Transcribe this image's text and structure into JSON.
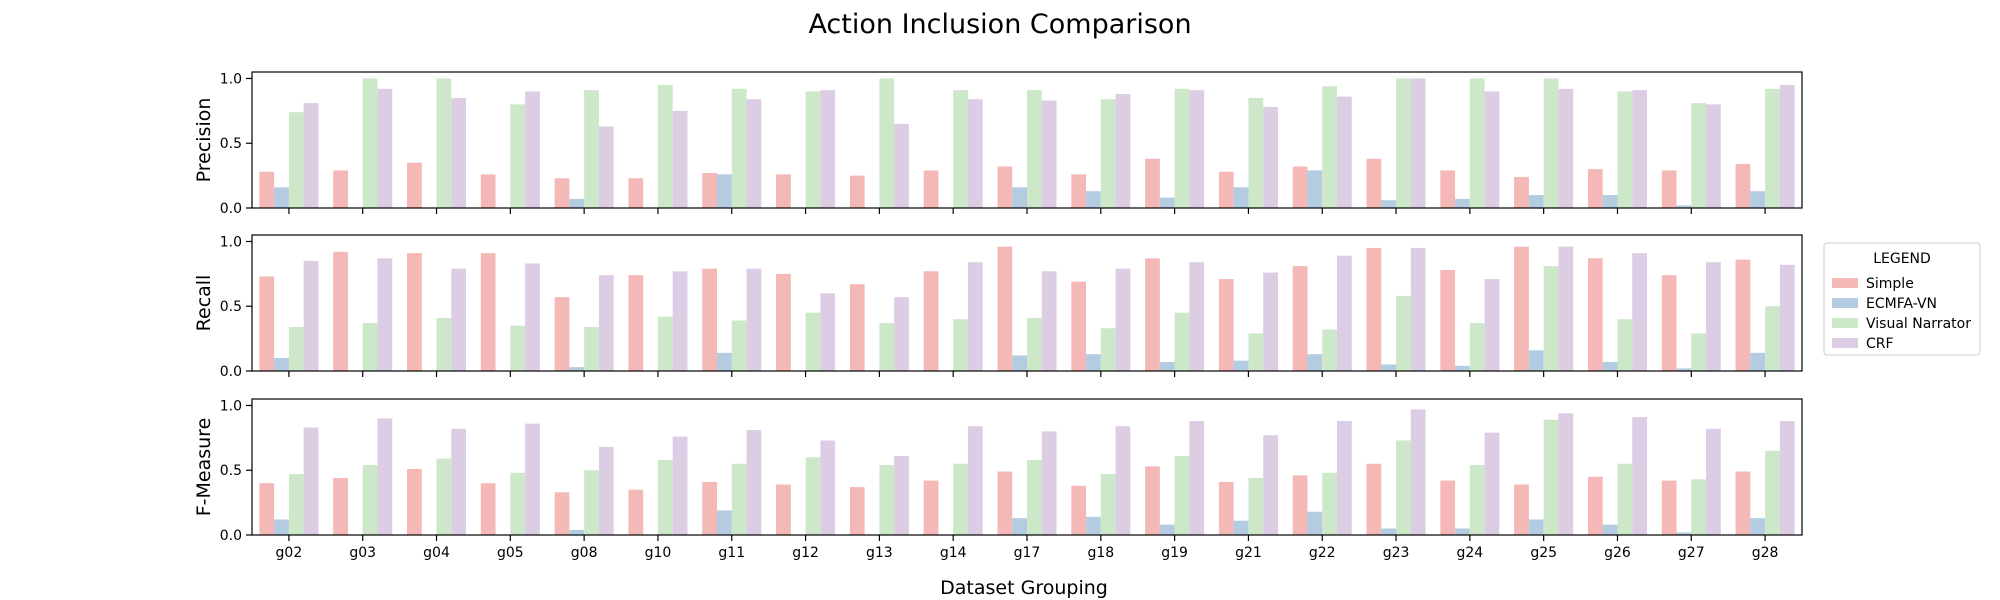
{
  "chart_data": {
    "type": "bar",
    "title": "Action Inclusion Comparison",
    "xlabel": "Dataset Grouping",
    "categories": [
      "g02",
      "g03",
      "g04",
      "g05",
      "g08",
      "g10",
      "g11",
      "g12",
      "g13",
      "g14",
      "g17",
      "g18",
      "g19",
      "g21",
      "g22",
      "g23",
      "g24",
      "g25",
      "g26",
      "g27",
      "g28"
    ],
    "legend": {
      "title": "LEGEND",
      "placement": "right",
      "items": [
        "Simple",
        "ECMFA-VN",
        "Visual Narrator",
        "CRF"
      ]
    },
    "colors": {
      "Simple": "#f4b9b7",
      "ECMFA-VN": "#b4cce1",
      "Visual Narrator": "#cde8c9",
      "CRF": "#dccde4"
    },
    "grid": false,
    "panels": [
      {
        "ylabel": "Precision",
        "ylim": [
          0,
          1.05
        ],
        "yticks": [
          "0.0",
          "0.5",
          "1.0"
        ],
        "series": [
          {
            "name": "Simple",
            "values": [
              0.28,
              0.29,
              0.35,
              0.26,
              0.23,
              0.23,
              0.27,
              0.26,
              0.25,
              0.29,
              0.32,
              0.26,
              0.38,
              0.28,
              0.32,
              0.38,
              0.29,
              0.24,
              0.3,
              0.29,
              0.34
            ]
          },
          {
            "name": "ECMFA-VN",
            "values": [
              0.16,
              0,
              0,
              0,
              0.07,
              0,
              0.26,
              0,
              0,
              0,
              0.16,
              0.13,
              0.08,
              0.16,
              0.29,
              0.06,
              0.07,
              0.1,
              0.1,
              0.02,
              0.13
            ]
          },
          {
            "name": "Visual Narrator",
            "values": [
              0.74,
              1.0,
              1.0,
              0.8,
              0.91,
              0.95,
              0.92,
              0.9,
              1.0,
              0.91,
              0.91,
              0.84,
              0.92,
              0.85,
              0.94,
              1.0,
              1.0,
              1.0,
              0.9,
              0.81,
              0.92
            ]
          },
          {
            "name": "CRF",
            "values": [
              0.81,
              0.92,
              0.85,
              0.9,
              0.63,
              0.75,
              0.84,
              0.91,
              0.65,
              0.84,
              0.83,
              0.88,
              0.91,
              0.78,
              0.86,
              1.0,
              0.9,
              0.92,
              0.91,
              0.8,
              0.95
            ]
          }
        ]
      },
      {
        "ylabel": "Recall",
        "ylim": [
          0,
          1.05
        ],
        "yticks": [
          "0.0",
          "0.5",
          "1.0"
        ],
        "series": [
          {
            "name": "Simple",
            "values": [
              0.73,
              0.92,
              0.91,
              0.91,
              0.57,
              0.74,
              0.79,
              0.75,
              0.67,
              0.77,
              0.96,
              0.69,
              0.87,
              0.71,
              0.81,
              0.95,
              0.78,
              0.96,
              0.87,
              0.74,
              0.86
            ]
          },
          {
            "name": "ECMFA-VN",
            "values": [
              0.1,
              0,
              0,
              0,
              0.03,
              0,
              0.14,
              0,
              0,
              0,
              0.12,
              0.13,
              0.07,
              0.08,
              0.13,
              0.05,
              0.04,
              0.16,
              0.07,
              0.02,
              0.14
            ]
          },
          {
            "name": "Visual Narrator",
            "values": [
              0.34,
              0.37,
              0.41,
              0.35,
              0.34,
              0.42,
              0.39,
              0.45,
              0.37,
              0.4,
              0.41,
              0.33,
              0.45,
              0.29,
              0.32,
              0.58,
              0.37,
              0.81,
              0.4,
              0.29,
              0.5
            ]
          },
          {
            "name": "CRF",
            "values": [
              0.85,
              0.87,
              0.79,
              0.83,
              0.74,
              0.77,
              0.79,
              0.6,
              0.57,
              0.84,
              0.77,
              0.79,
              0.84,
              0.76,
              0.89,
              0.95,
              0.71,
              0.96,
              0.91,
              0.84,
              0.82
            ]
          }
        ]
      },
      {
        "ylabel": "F-Measure",
        "ylim": [
          0,
          1.05
        ],
        "yticks": [
          "0.0",
          "0.5",
          "1.0"
        ],
        "series": [
          {
            "name": "Simple",
            "values": [
              0.4,
              0.44,
              0.51,
              0.4,
              0.33,
              0.35,
              0.41,
              0.39,
              0.37,
              0.42,
              0.49,
              0.38,
              0.53,
              0.41,
              0.46,
              0.55,
              0.42,
              0.39,
              0.45,
              0.42,
              0.49
            ]
          },
          {
            "name": "ECMFA-VN",
            "values": [
              0.12,
              0,
              0,
              0,
              0.04,
              0,
              0.19,
              0,
              0,
              0,
              0.13,
              0.14,
              0.08,
              0.11,
              0.18,
              0.05,
              0.05,
              0.12,
              0.08,
              0.02,
              0.13
            ]
          },
          {
            "name": "Visual Narrator",
            "values": [
              0.47,
              0.54,
              0.59,
              0.48,
              0.5,
              0.58,
              0.55,
              0.6,
              0.54,
              0.55,
              0.58,
              0.47,
              0.61,
              0.44,
              0.48,
              0.73,
              0.54,
              0.89,
              0.55,
              0.43,
              0.65
            ]
          },
          {
            "name": "CRF",
            "values": [
              0.83,
              0.9,
              0.82,
              0.86,
              0.68,
              0.76,
              0.81,
              0.73,
              0.61,
              0.84,
              0.8,
              0.84,
              0.88,
              0.77,
              0.88,
              0.97,
              0.79,
              0.94,
              0.91,
              0.82,
              0.88
            ]
          }
        ]
      }
    ]
  }
}
